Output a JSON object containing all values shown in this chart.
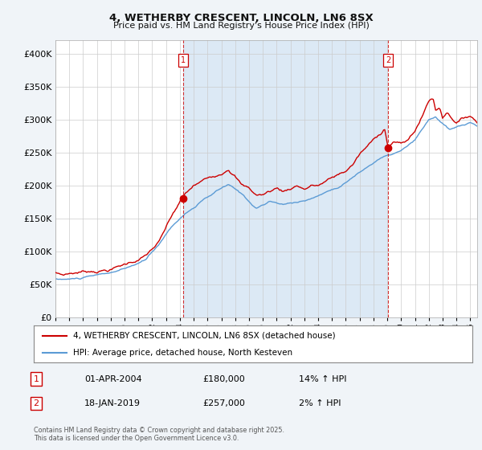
{
  "title": "4, WETHERBY CRESCENT, LINCOLN, LN6 8SX",
  "subtitle": "Price paid vs. HM Land Registry's House Price Index (HPI)",
  "ylim": [
    0,
    420000
  ],
  "xlim_start": 1995.0,
  "xlim_end": 2025.5,
  "red_color": "#cc0000",
  "blue_color": "#5b9bd5",
  "shade_color": "#dce9f5",
  "vline1_x": 2004.25,
  "vline2_x": 2019.05,
  "dot1_x": 2004.25,
  "dot1_y": 180000,
  "dot2_x": 2019.05,
  "dot2_y": 257000,
  "legend_line1": "4, WETHERBY CRESCENT, LINCOLN, LN6 8SX (detached house)",
  "legend_line2": "HPI: Average price, detached house, North Kesteven",
  "annotation1_date": "01-APR-2004",
  "annotation1_price": "£180,000",
  "annotation1_hpi": "14% ↑ HPI",
  "annotation2_date": "18-JAN-2019",
  "annotation2_price": "£257,000",
  "annotation2_hpi": "2% ↑ HPI",
  "footer": "Contains HM Land Registry data © Crown copyright and database right 2025.\nThis data is licensed under the Open Government Licence v3.0.",
  "background_color": "#f0f4f8",
  "plot_background": "#ffffff",
  "grid_color": "#cccccc"
}
